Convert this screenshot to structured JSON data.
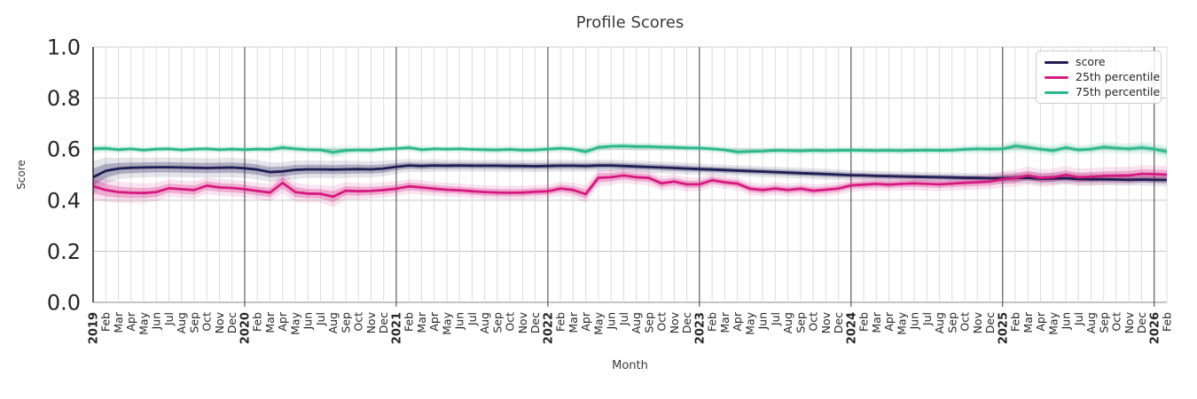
{
  "figure": {
    "title": "Profile Scores"
  },
  "chart_data": {
    "type": "line",
    "title": "Profile Scores",
    "xlabel": "Month",
    "ylabel": "Score",
    "ylim": [
      0.0,
      1.0
    ],
    "y_ticks": [
      "0.0",
      "0.2",
      "0.4",
      "0.6",
      "0.8",
      "1.0"
    ],
    "grid": true,
    "legend_position": "upper right",
    "x_labels": [
      "2019",
      "Feb",
      "Mar",
      "Apr",
      "May",
      "Jun",
      "Jul",
      "Aug",
      "Sep",
      "Oct",
      "Nov",
      "Dec",
      "2020",
      "Feb",
      "Mar",
      "Apr",
      "May",
      "Jun",
      "Jul",
      "Aug",
      "Sep",
      "Oct",
      "Nov",
      "Dec",
      "2021",
      "Feb",
      "Mar",
      "Apr",
      "May",
      "Jun",
      "Jul",
      "Aug",
      "Sep",
      "Oct",
      "Nov",
      "Dec",
      "2022",
      "Feb",
      "Mar",
      "Apr",
      "May",
      "Jun",
      "Jul",
      "Aug",
      "Sep",
      "Oct",
      "Nov",
      "Dec",
      "2023",
      "Feb",
      "Mar",
      "Apr",
      "May",
      "Jun",
      "Jul",
      "Aug",
      "Sep",
      "Oct",
      "Nov",
      "Dec",
      "2024",
      "Feb",
      "Mar",
      "Apr",
      "May",
      "Jun",
      "Jul",
      "Aug",
      "Sep",
      "Oct",
      "Nov",
      "Dec",
      "2025",
      "Feb",
      "Mar",
      "Apr",
      "May",
      "Jun",
      "Jul",
      "Aug",
      "Sep",
      "Oct",
      "Nov",
      "Dec",
      "2026",
      "Feb"
    ],
    "series": [
      {
        "name": "score",
        "color": "#1f1d53",
        "values": [
          0.49,
          0.515,
          0.524,
          0.527,
          0.528,
          0.529,
          0.529,
          0.528,
          0.527,
          0.526,
          0.527,
          0.528,
          0.525,
          0.52,
          0.51,
          0.513,
          0.519,
          0.521,
          0.521,
          0.52,
          0.521,
          0.522,
          0.521,
          0.524,
          0.531,
          0.536,
          0.534,
          0.536,
          0.535,
          0.536,
          0.535,
          0.535,
          0.535,
          0.534,
          0.534,
          0.533,
          0.534,
          0.535,
          0.535,
          0.534,
          0.536,
          0.536,
          0.534,
          0.532,
          0.53,
          0.528,
          0.526,
          0.524,
          0.522,
          0.52,
          0.518,
          0.516,
          0.514,
          0.512,
          0.51,
          0.508,
          0.506,
          0.504,
          0.502,
          0.5,
          0.498,
          0.497,
          0.495,
          0.494,
          0.493,
          0.492,
          0.491,
          0.49,
          0.489,
          0.488,
          0.487,
          0.486,
          0.486,
          0.487,
          0.488,
          0.484,
          0.485,
          0.486,
          0.483,
          0.482,
          0.482,
          0.481,
          0.48,
          0.481,
          0.48,
          0.479
        ],
        "band": [
          0.034,
          0.027,
          0.022,
          0.021,
          0.02,
          0.02,
          0.02,
          0.02,
          0.02,
          0.02,
          0.02,
          0.02,
          0.02,
          0.02,
          0.02,
          0.019,
          0.019,
          0.018,
          0.018,
          0.018,
          0.018,
          0.017,
          0.017,
          0.016,
          0.014,
          0.013,
          0.013,
          0.013,
          0.012,
          0.012,
          0.012,
          0.012,
          0.012,
          0.012,
          0.012,
          0.012,
          0.012,
          0.012,
          0.012,
          0.012,
          0.012,
          0.012,
          0.012,
          0.012,
          0.012,
          0.012,
          0.012,
          0.012,
          0.011,
          0.011,
          0.011,
          0.011,
          0.011,
          0.011,
          0.011,
          0.011,
          0.011,
          0.011,
          0.011,
          0.011,
          0.01,
          0.01,
          0.01,
          0.01,
          0.01,
          0.01,
          0.01,
          0.01,
          0.01,
          0.01,
          0.01,
          0.01,
          0.012,
          0.012,
          0.012,
          0.012,
          0.012,
          0.012,
          0.012,
          0.012,
          0.012,
          0.012,
          0.012,
          0.012,
          0.013,
          0.013
        ]
      },
      {
        "name": "25th percentile",
        "color": "#d61980",
        "values": [
          0.455,
          0.44,
          0.432,
          0.429,
          0.428,
          0.432,
          0.447,
          0.443,
          0.44,
          0.457,
          0.45,
          0.448,
          0.443,
          0.436,
          0.43,
          0.468,
          0.432,
          0.426,
          0.425,
          0.414,
          0.437,
          0.435,
          0.436,
          0.44,
          0.445,
          0.454,
          0.45,
          0.445,
          0.441,
          0.439,
          0.435,
          0.432,
          0.43,
          0.429,
          0.43,
          0.433,
          0.435,
          0.446,
          0.44,
          0.424,
          0.488,
          0.49,
          0.497,
          0.49,
          0.487,
          0.466,
          0.473,
          0.462,
          0.462,
          0.478,
          0.47,
          0.465,
          0.445,
          0.44,
          0.446,
          0.44,
          0.445,
          0.437,
          0.441,
          0.446,
          0.458,
          0.461,
          0.464,
          0.461,
          0.464,
          0.466,
          0.464,
          0.462,
          0.465,
          0.468,
          0.47,
          0.473,
          0.482,
          0.486,
          0.497,
          0.487,
          0.49,
          0.499,
          0.49,
          0.492,
          0.495,
          0.496,
          0.497,
          0.503,
          0.502,
          0.5
        ],
        "band": [
          0.028,
          0.024,
          0.022,
          0.021,
          0.02,
          0.019,
          0.018,
          0.018,
          0.018,
          0.017,
          0.017,
          0.017,
          0.017,
          0.017,
          0.018,
          0.022,
          0.02,
          0.018,
          0.018,
          0.022,
          0.018,
          0.017,
          0.016,
          0.016,
          0.015,
          0.015,
          0.015,
          0.014,
          0.014,
          0.014,
          0.014,
          0.014,
          0.014,
          0.014,
          0.014,
          0.014,
          0.014,
          0.014,
          0.015,
          0.018,
          0.018,
          0.016,
          0.015,
          0.015,
          0.015,
          0.015,
          0.015,
          0.014,
          0.014,
          0.014,
          0.013,
          0.013,
          0.013,
          0.013,
          0.013,
          0.013,
          0.013,
          0.013,
          0.013,
          0.013,
          0.013,
          0.013,
          0.013,
          0.013,
          0.013,
          0.014,
          0.014,
          0.014,
          0.014,
          0.015,
          0.015,
          0.016,
          0.017,
          0.018,
          0.018,
          0.018,
          0.018,
          0.018,
          0.018,
          0.018,
          0.018,
          0.018,
          0.018,
          0.018,
          0.018,
          0.018
        ]
      },
      {
        "name": "75th percentile",
        "color": "#2db88a",
        "values": [
          0.601,
          0.603,
          0.598,
          0.601,
          0.596,
          0.6,
          0.601,
          0.597,
          0.6,
          0.601,
          0.598,
          0.6,
          0.598,
          0.6,
          0.599,
          0.606,
          0.601,
          0.598,
          0.597,
          0.588,
          0.595,
          0.597,
          0.596,
          0.6,
          0.602,
          0.606,
          0.598,
          0.601,
          0.6,
          0.601,
          0.599,
          0.598,
          0.597,
          0.599,
          0.596,
          0.597,
          0.6,
          0.603,
          0.6,
          0.59,
          0.607,
          0.611,
          0.612,
          0.61,
          0.61,
          0.608,
          0.607,
          0.605,
          0.604,
          0.601,
          0.597,
          0.589,
          0.591,
          0.592,
          0.595,
          0.594,
          0.593,
          0.595,
          0.594,
          0.595,
          0.596,
          0.595,
          0.594,
          0.595,
          0.594,
          0.595,
          0.596,
          0.595,
          0.596,
          0.599,
          0.601,
          0.6,
          0.601,
          0.612,
          0.607,
          0.6,
          0.594,
          0.606,
          0.597,
          0.6,
          0.608,
          0.604,
          0.601,
          0.606,
          0.6,
          0.59
        ],
        "band": [
          0.01,
          0.008,
          0.008,
          0.007,
          0.007,
          0.007,
          0.007,
          0.007,
          0.007,
          0.007,
          0.007,
          0.007,
          0.007,
          0.007,
          0.008,
          0.009,
          0.008,
          0.008,
          0.008,
          0.012,
          0.009,
          0.008,
          0.008,
          0.007,
          0.007,
          0.008,
          0.008,
          0.007,
          0.007,
          0.007,
          0.007,
          0.008,
          0.008,
          0.008,
          0.008,
          0.008,
          0.008,
          0.008,
          0.008,
          0.01,
          0.009,
          0.008,
          0.008,
          0.008,
          0.008,
          0.008,
          0.008,
          0.008,
          0.008,
          0.008,
          0.008,
          0.009,
          0.008,
          0.008,
          0.008,
          0.008,
          0.008,
          0.008,
          0.008,
          0.008,
          0.008,
          0.008,
          0.008,
          0.008,
          0.008,
          0.008,
          0.008,
          0.008,
          0.008,
          0.009,
          0.009,
          0.009,
          0.01,
          0.012,
          0.011,
          0.01,
          0.011,
          0.011,
          0.01,
          0.01,
          0.011,
          0.011,
          0.011,
          0.012,
          0.012,
          0.013
        ]
      }
    ]
  }
}
